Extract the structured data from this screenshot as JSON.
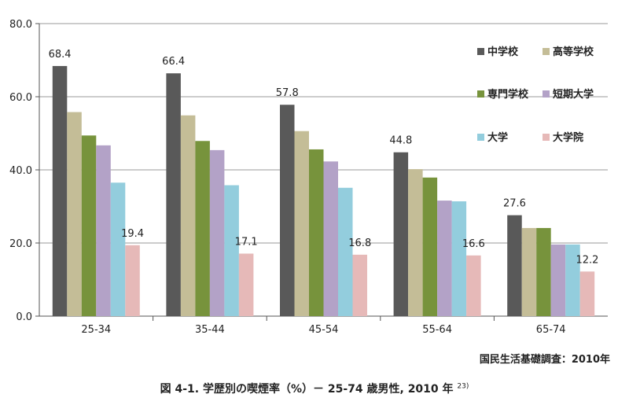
{
  "chart_data": {
    "type": "bar",
    "categories": [
      "25-34",
      "35-44",
      "45-54",
      "55-64",
      "65-74"
    ],
    "series": [
      {
        "name": "中学校",
        "values": [
          68.4,
          66.4,
          57.8,
          44.8,
          27.6
        ],
        "color": "#595959"
      },
      {
        "name": "高等学校",
        "values": [
          55.8,
          54.9,
          50.6,
          40.2,
          24.1
        ],
        "color": "#c4bd97"
      },
      {
        "name": "専門学校",
        "values": [
          49.4,
          47.9,
          45.6,
          37.9,
          24.1
        ],
        "color": "#77933c"
      },
      {
        "name": "短期大学",
        "values": [
          46.7,
          45.4,
          42.3,
          31.6,
          19.6
        ],
        "color": "#b3a2c7"
      },
      {
        "name": "大学",
        "values": [
          36.5,
          35.8,
          35.1,
          31.4,
          19.6
        ],
        "color": "#93cddd"
      },
      {
        "name": "大学院",
        "values": [
          19.4,
          17.1,
          16.8,
          16.6,
          12.2
        ],
        "color": "#e6b9b8"
      }
    ],
    "data_labels": {
      "中学校": [
        "68.4",
        "66.4",
        "57.8",
        "44.8",
        "27.6"
      ],
      "大学院": [
        "19.4",
        "17.1",
        "16.8",
        "16.6",
        "12.2"
      ]
    },
    "ylim": [
      0,
      80
    ],
    "yticks": [
      "0.0",
      "20.0",
      "40.0",
      "60.0",
      "80.0"
    ],
    "gridlines": true,
    "legend_position": "top-right",
    "xlabel": "",
    "ylabel": ""
  },
  "source_note": "国民生活基礎調査：2010年",
  "caption": {
    "text": "図 4-1.  学歴別の喫煙率（%）－ 25-74 歳男性,  2010 年",
    "ref": "23)"
  }
}
